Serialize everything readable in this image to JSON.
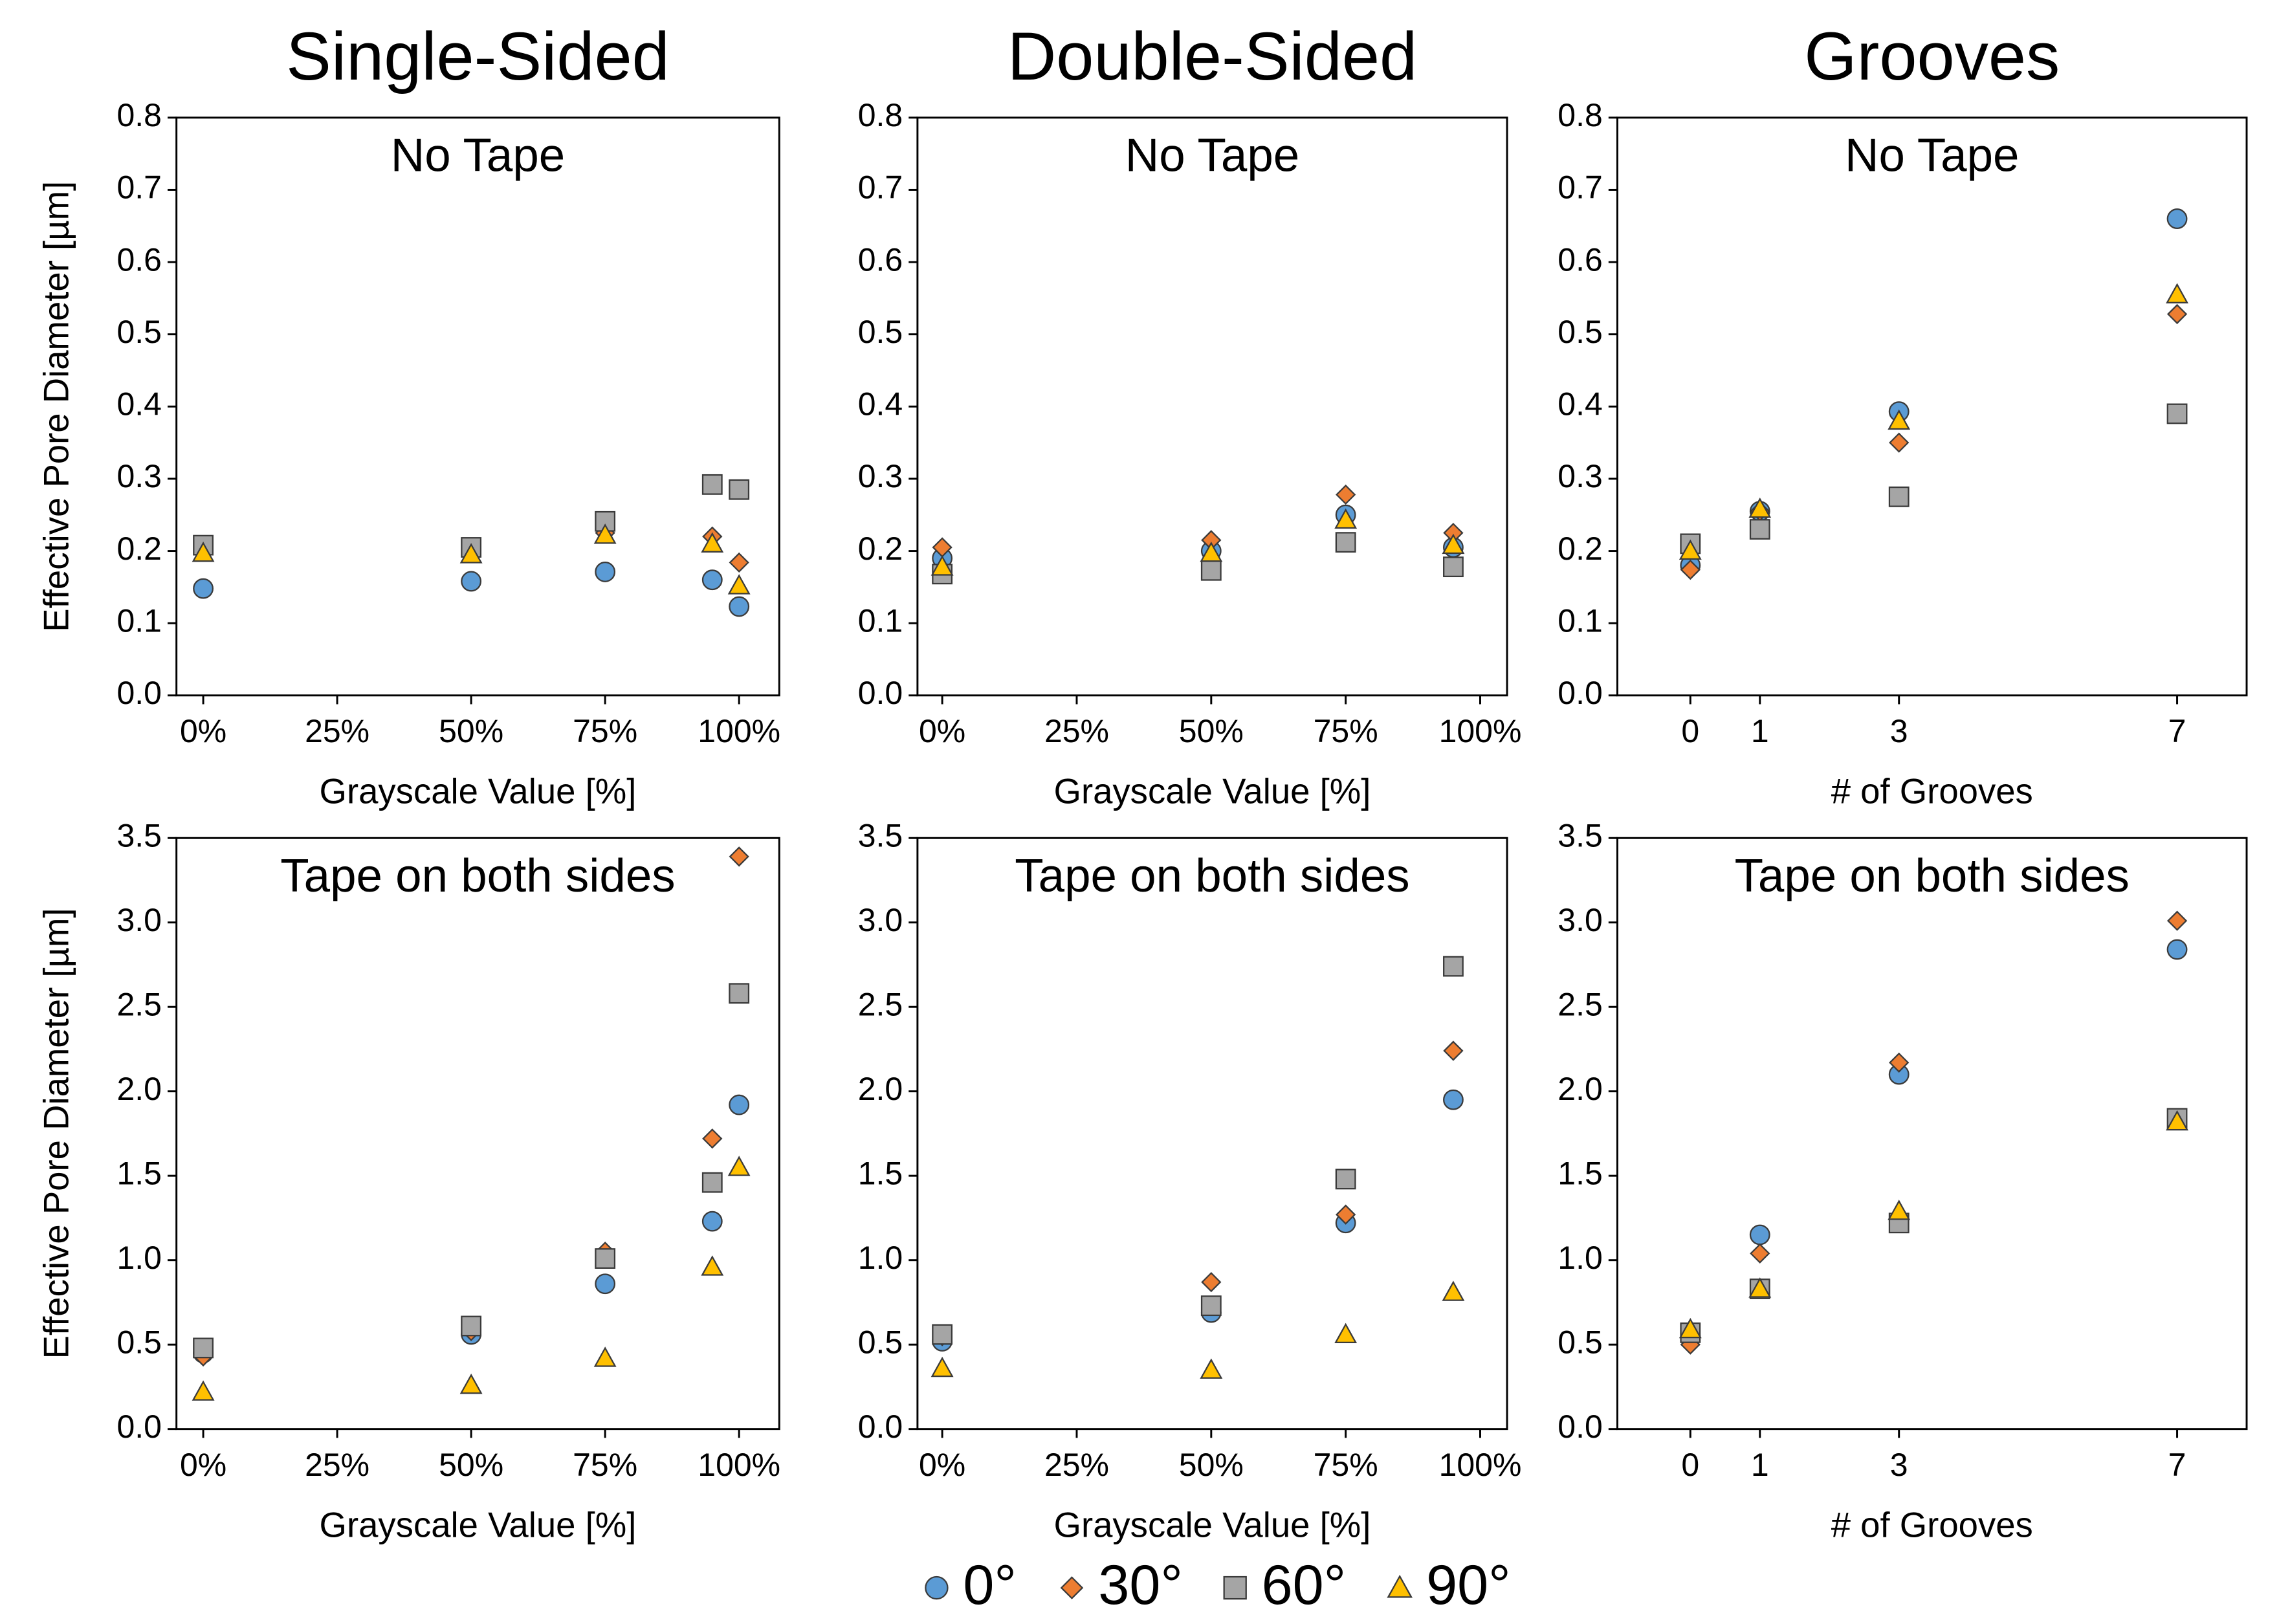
{
  "chart_data": [
    {
      "type": "scatter",
      "title": "Single-Sided",
      "subtitle": "No Tape",
      "x_label": "Grayscale Value [%]",
      "y_label": "Effective Pore Diameter [µm]",
      "x": [
        0,
        50,
        75,
        95,
        100
      ],
      "series": [
        {
          "color": "#5b9bd5",
          "marker": "circle",
          "values": [
            0.148,
            0.158,
            0.171,
            0.16,
            0.123
          ]
        },
        {
          "color": "#ed7d31",
          "marker": "diamond",
          "values": [
            0.2,
            0.2,
            0.225,
            0.22,
            0.184
          ]
        },
        {
          "color": "#a5a5a5",
          "marker": "square",
          "values": [
            0.208,
            0.205,
            0.241,
            0.292,
            0.285
          ]
        },
        {
          "color": "#ffc000",
          "marker": "triangle",
          "values": [
            0.197,
            0.195,
            0.222,
            0.21,
            0.152
          ]
        }
      ],
      "xlim": [
        -5,
        107.5
      ],
      "ylim": [
        0,
        0.8
      ],
      "xticks": [
        {
          "value": 0,
          "label": "0%"
        },
        {
          "value": 25,
          "label": "25%"
        },
        {
          "value": 50,
          "label": "50%"
        },
        {
          "value": 75,
          "label": "75%"
        },
        {
          "value": 100,
          "label": "100%"
        }
      ],
      "yticks": [
        {
          "value": 0,
          "label": "0.0"
        },
        0.1,
        0.2,
        0.3,
        0.4,
        0.5,
        0.6,
        0.7,
        0.8
      ]
    },
    {
      "type": "scatter",
      "title": "Double-Sided",
      "subtitle": "No Tape",
      "x_label": "Grayscale Value [%]",
      "x": [
        0,
        50,
        75,
        95
      ],
      "series": [
        {
          "color": "#5b9bd5",
          "marker": "circle",
          "values": [
            0.19,
            0.2,
            0.25,
            0.205
          ]
        },
        {
          "color": "#ed7d31",
          "marker": "diamond",
          "values": [
            0.205,
            0.215,
            0.278,
            0.225
          ]
        },
        {
          "color": "#a5a5a5",
          "marker": "square",
          "values": [
            0.168,
            0.173,
            0.212,
            0.178
          ]
        },
        {
          "color": "#ffc000",
          "marker": "triangle",
          "values": [
            0.178,
            0.197,
            0.243,
            0.208
          ]
        }
      ],
      "xlim": [
        -4.6,
        105
      ],
      "ylim": [
        0,
        0.8
      ],
      "xticks": [
        {
          "value": 0,
          "label": "0%"
        },
        {
          "value": 25,
          "label": "25%"
        },
        {
          "value": 50,
          "label": "50%"
        },
        {
          "value": 75,
          "label": "75%"
        },
        {
          "value": 100,
          "label": "100%"
        }
      ],
      "yticks": [
        {
          "value": 0,
          "label": "0.0"
        },
        0.1,
        0.2,
        0.3,
        0.4,
        0.5,
        0.6,
        0.7,
        0.8
      ]
    },
    {
      "type": "scatter",
      "title": "Grooves",
      "subtitle": "No Tape",
      "x_label": "# of Grooves",
      "x": [
        0,
        1,
        3,
        7
      ],
      "series": [
        {
          "color": "#5b9bd5",
          "marker": "circle",
          "values": [
            0.18,
            0.255,
            0.393,
            0.66
          ]
        },
        {
          "color": "#ed7d31",
          "marker": "diamond",
          "values": [
            0.174,
            0.255,
            0.35,
            0.528
          ]
        },
        {
          "color": "#a5a5a5",
          "marker": "square",
          "values": [
            0.21,
            0.23,
            0.275,
            0.39
          ]
        },
        {
          "color": "#ffc000",
          "marker": "triangle",
          "values": [
            0.2,
            0.258,
            0.38,
            0.555
          ]
        }
      ],
      "xlim": [
        -1.05,
        8
      ],
      "ylim": [
        0,
        0.8
      ],
      "xticks": [
        0,
        1,
        3,
        7
      ],
      "yticks": [
        {
          "value": 0,
          "label": "0.0"
        },
        0.1,
        0.2,
        0.3,
        0.4,
        0.5,
        0.6,
        0.7,
        0.8
      ]
    },
    {
      "type": "scatter",
      "subtitle": "Tape on both sides",
      "x_label": "Grayscale Value [%]",
      "y_label": "Effective Pore Diameter [µm]",
      "x": [
        0,
        50,
        75,
        95,
        100
      ],
      "series": [
        {
          "color": "#5b9bd5",
          "marker": "circle",
          "values": [
            0.45,
            0.56,
            0.86,
            1.23,
            1.92
          ]
        },
        {
          "color": "#ed7d31",
          "marker": "diamond",
          "values": [
            0.43,
            0.58,
            1.05,
            1.72,
            3.39
          ]
        },
        {
          "color": "#a5a5a5",
          "marker": "square",
          "values": [
            0.48,
            0.61,
            1.01,
            1.46,
            2.58
          ]
        },
        {
          "color": "#ffc000",
          "marker": "triangle",
          "values": [
            0.22,
            0.26,
            0.42,
            0.96,
            1.55
          ]
        }
      ],
      "xlim": [
        -5,
        107.5
      ],
      "ylim": [
        0,
        3.5
      ],
      "xticks": [
        {
          "value": 0,
          "label": "0%"
        },
        {
          "value": 25,
          "label": "25%"
        },
        {
          "value": 50,
          "label": "50%"
        },
        {
          "value": 75,
          "label": "75%"
        },
        {
          "value": 100,
          "label": "100%"
        }
      ],
      "yticks": [
        {
          "value": 0,
          "label": "0.0"
        },
        0.5,
        {
          "value": 1,
          "label": "1.0"
        },
        1.5,
        {
          "value": 2,
          "label": "2.0"
        },
        2.5,
        {
          "value": 3,
          "label": "3.0"
        },
        3.5
      ]
    },
    {
      "type": "scatter",
      "subtitle": "Tape on both sides",
      "x_label": "Grayscale Value [%]",
      "x": [
        0,
        50,
        75,
        95
      ],
      "series": [
        {
          "color": "#5b9bd5",
          "marker": "circle",
          "values": [
            0.52,
            0.69,
            1.22,
            1.95
          ]
        },
        {
          "color": "#ed7d31",
          "marker": "diamond",
          "values": [
            0.55,
            0.87,
            1.27,
            2.24
          ]
        },
        {
          "color": "#a5a5a5",
          "marker": "square",
          "values": [
            0.56,
            0.73,
            1.48,
            2.74
          ]
        },
        {
          "color": "#ffc000",
          "marker": "triangle",
          "values": [
            0.36,
            0.35,
            0.56,
            0.81
          ]
        }
      ],
      "xlim": [
        -4.6,
        105
      ],
      "ylim": [
        0,
        3.5
      ],
      "xticks": [
        {
          "value": 0,
          "label": "0%"
        },
        {
          "value": 25,
          "label": "25%"
        },
        {
          "value": 50,
          "label": "50%"
        },
        {
          "value": 75,
          "label": "75%"
        },
        {
          "value": 100,
          "label": "100%"
        }
      ],
      "yticks": [
        {
          "value": 0,
          "label": "0.0"
        },
        0.5,
        {
          "value": 1,
          "label": "1.0"
        },
        1.5,
        {
          "value": 2,
          "label": "2.0"
        },
        2.5,
        {
          "value": 3,
          "label": "3.0"
        },
        3.5
      ]
    },
    {
      "type": "scatter",
      "subtitle": "Tape on both sides",
      "x_label": "# of Grooves",
      "x": [
        0,
        1,
        3,
        7
      ],
      "series": [
        {
          "color": "#5b9bd5",
          "marker": "circle",
          "values": [
            0.55,
            1.15,
            2.1,
            2.84
          ]
        },
        {
          "color": "#ed7d31",
          "marker": "diamond",
          "values": [
            0.5,
            1.04,
            2.17,
            3.01
          ]
        },
        {
          "color": "#a5a5a5",
          "marker": "square",
          "values": [
            0.57,
            0.83,
            1.22,
            1.84
          ]
        },
        {
          "color": "#ffc000",
          "marker": "triangle",
          "values": [
            0.59,
            0.83,
            1.29,
            1.82
          ]
        }
      ],
      "xlim": [
        -1.05,
        8
      ],
      "ylim": [
        0,
        3.5
      ],
      "xticks": [
        0,
        1,
        3,
        7
      ],
      "yticks": [
        {
          "value": 0,
          "label": "0.0"
        },
        0.5,
        {
          "value": 1,
          "label": "1.0"
        },
        1.5,
        {
          "value": 2,
          "label": "2.0"
        },
        2.5,
        {
          "value": 3,
          "label": "3.0"
        },
        3.5
      ]
    }
  ],
  "legend": [
    {
      "name": "0°",
      "color": "#5b9bd5",
      "marker": "circle"
    },
    {
      "name": "30°",
      "color": "#ed7d31",
      "marker": "diamond"
    },
    {
      "name": "60°",
      "color": "#a5a5a5",
      "marker": "square"
    },
    {
      "name": "90°",
      "color": "#ffc000",
      "marker": "triangle"
    }
  ]
}
